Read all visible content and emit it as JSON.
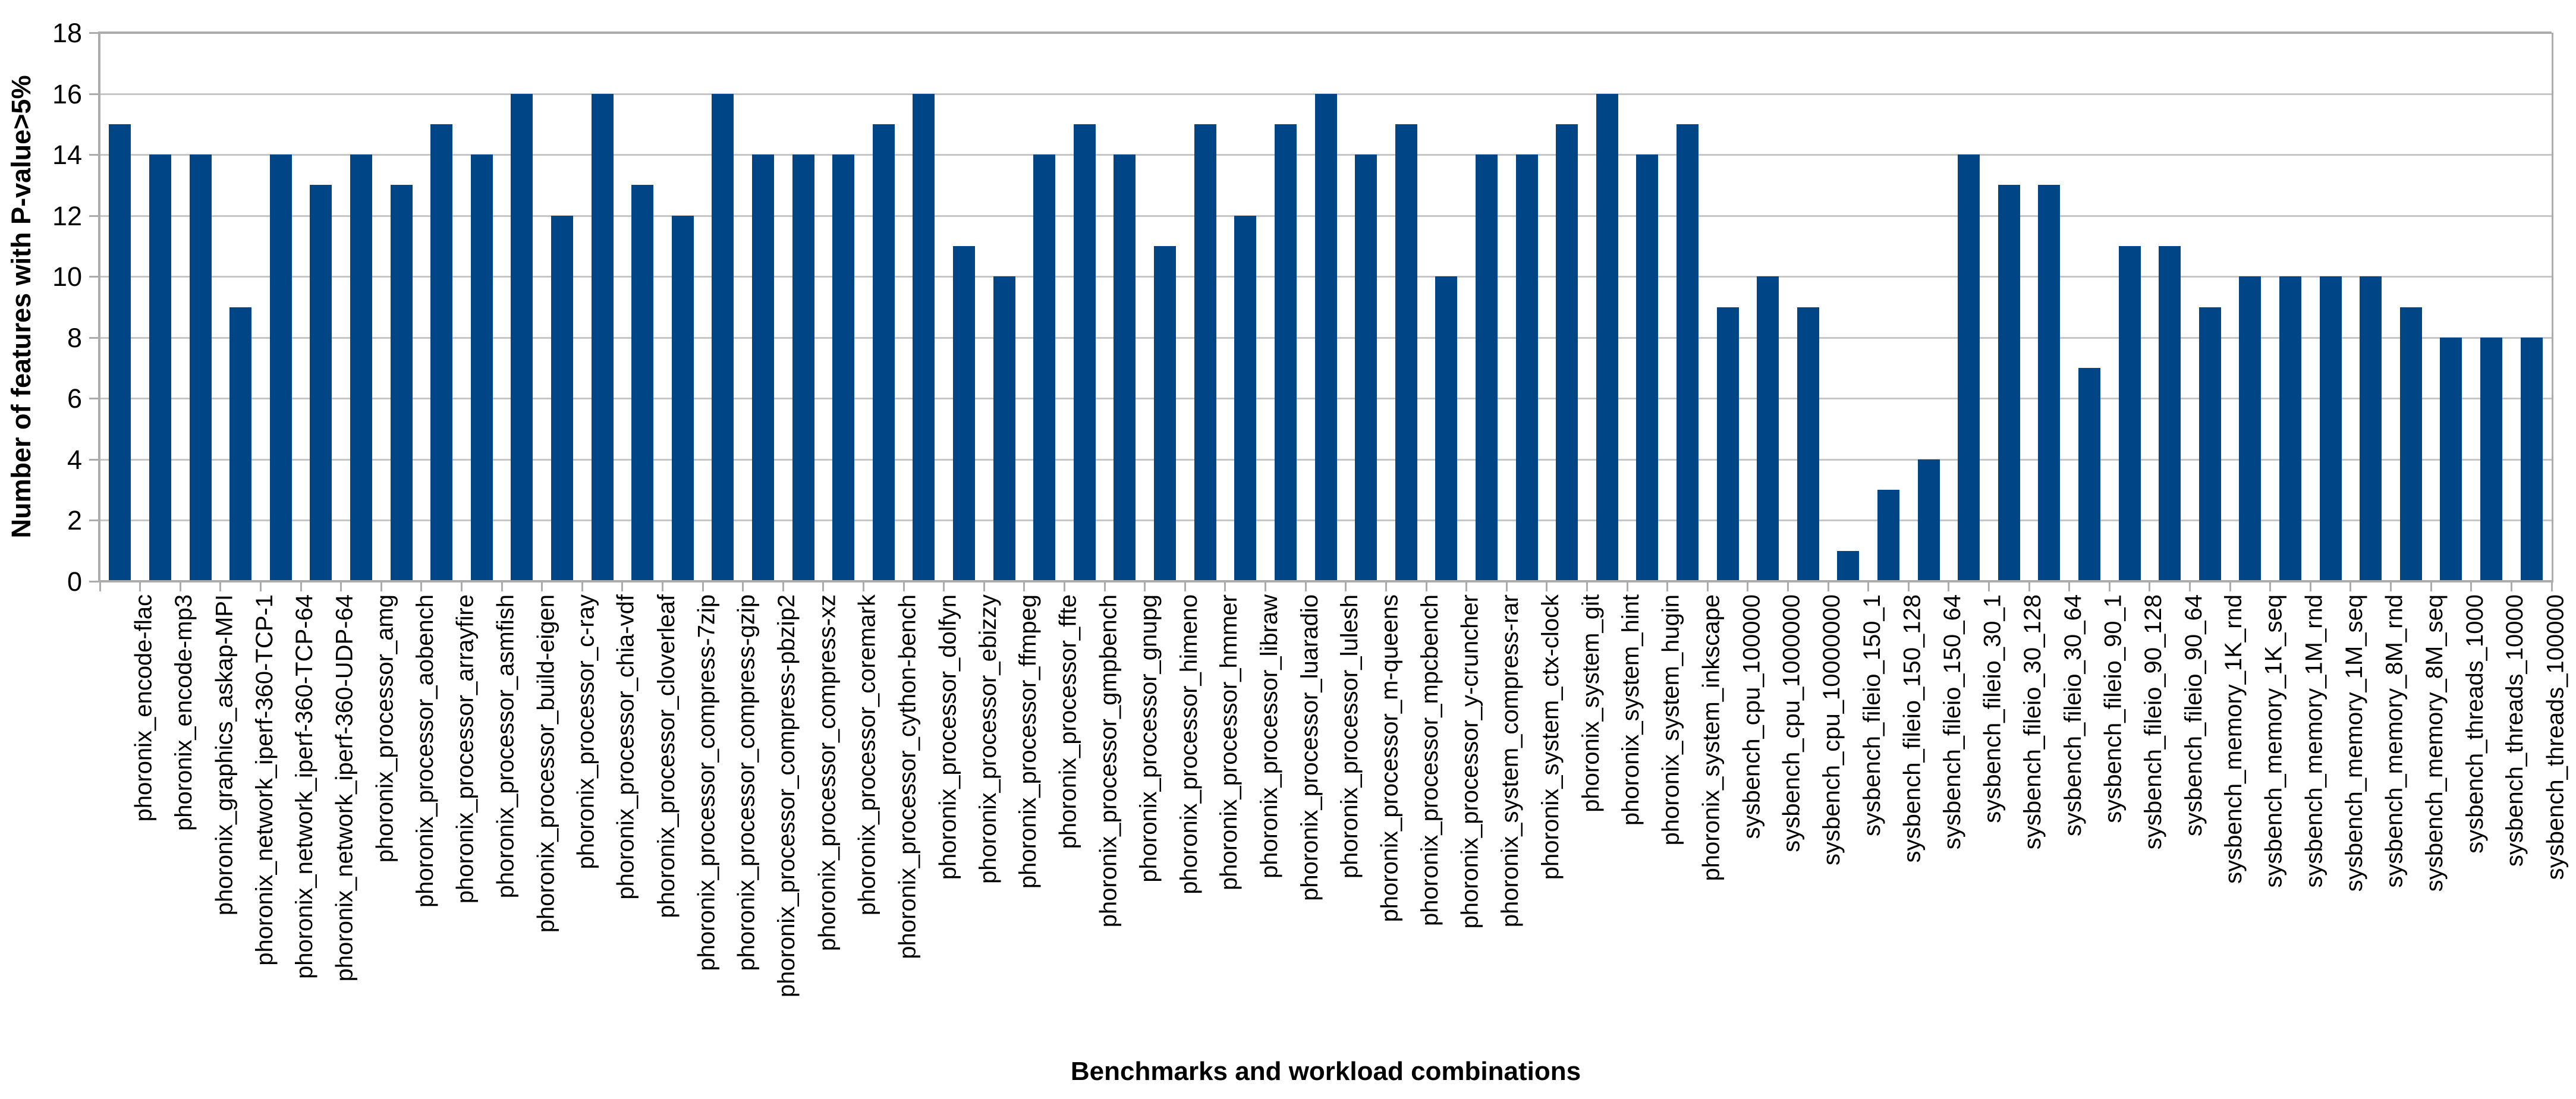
{
  "chart_data": {
    "type": "bar",
    "title": "",
    "xlabel": "Benchmarks and workload combinations",
    "ylabel": "Number of features with P-value>5%",
    "ylim": [
      0,
      18
    ],
    "ytick_step": 2,
    "y_tick_labels": [
      "0",
      "2",
      "4",
      "6",
      "8",
      "10",
      "12",
      "14",
      "16",
      "18"
    ],
    "grid": true,
    "legend": "none",
    "bar_color": "#004586",
    "gridline_color": "#c6c6c6",
    "axis_color": "#acacac",
    "categories": [
      "phoronix_encode-flac",
      "phoronix_encode-mp3",
      "phoronix_graphics_askap-MPI",
      "phoronix_network_iperf-360-TCP-1",
      "phoronix_network_iperf-360-TCP-64",
      "phoronix_network_iperf-360-UDP-64",
      "phoronix_processor_amg",
      "phoronix_processor_aobench",
      "phoronix_processor_arrayfire",
      "phoronix_processor_asmfish",
      "phoronix_processor_build-eigen",
      "phoronix_processor_c-ray",
      "phoronix_processor_chia-vdf",
      "phoronix_processor_cloverleaf",
      "phoronix_processor_compress-7zip",
      "phoronix_processor_compress-gzip",
      "phoronix_processor_compress-pbzip2",
      "phoronix_processor_compress-xz",
      "phoronix_processor_coremark",
      "phoronix_processor_cython-bench",
      "phoronix_processor_dolfyn",
      "phoronix_processor_ebizzy",
      "phoronix_processor_ffmpeg",
      "phoronix_processor_ffte",
      "phoronix_processor_gmpbench",
      "phoronix_processor_gnupg",
      "phoronix_processor_himeno",
      "phoronix_processor_hmmer",
      "phoronix_processor_libraw",
      "phoronix_processor_luaradio",
      "phoronix_processor_lulesh",
      "phoronix_processor_m-queens",
      "phoronix_processor_mpcbench",
      "phoronix_processor_y-cruncher",
      "phoronix_system_compress-rar",
      "phoronix_system_ctx-clock",
      "phoronix_system_git",
      "phoronix_system_hint",
      "phoronix_system_hugin",
      "phoronix_system_inkscape",
      "sysbench_cpu_100000",
      "sysbench_cpu_1000000",
      "sysbench_cpu_10000000",
      "sysbench_fileio_150_1",
      "sysbench_fileio_150_128",
      "sysbench_fileio_150_64",
      "sysbench_fileio_30_1",
      "sysbench_fileio_30_128",
      "sysbench_fileio_30_64",
      "sysbench_fileio_90_1",
      "sysbench_fileio_90_128",
      "sysbench_fileio_90_64",
      "sysbench_memory_1K_rnd",
      "sysbench_memory_1K_seq",
      "sysbench_memory_1M_rnd",
      "sysbench_memory_1M_seq",
      "sysbench_memory_8M_rnd",
      "sysbench_memory_8M_seq",
      "sysbench_threads_1000",
      "sysbench_threads_10000",
      "sysbench_threads_100000"
    ],
    "values": [
      15,
      14,
      14,
      9,
      14,
      13,
      14,
      13,
      15,
      14,
      16,
      12,
      16,
      13,
      12,
      16,
      14,
      14,
      14,
      15,
      16,
      11,
      10,
      14,
      15,
      14,
      11,
      15,
      12,
      15,
      16,
      14,
      15,
      10,
      14,
      14,
      15,
      16,
      14,
      15,
      9,
      10,
      9,
      1,
      3,
      4,
      14,
      13,
      13,
      7,
      11,
      11,
      9,
      10,
      10,
      10,
      10,
      9,
      8,
      8,
      8
    ]
  }
}
